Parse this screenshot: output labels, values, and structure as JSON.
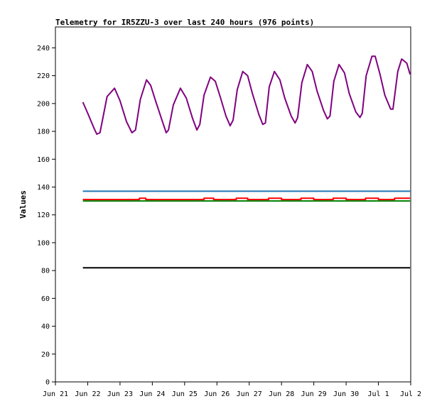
{
  "chart_data": {
    "type": "line",
    "title": "Telemetry for IR5ZZU-3 over last 240 hours (976 points)",
    "xlabel": "",
    "ylabel": "Values",
    "x_tick_labels": [
      "Jun 21",
      "Jun 22",
      "Jun 23",
      "Jun 24",
      "Jun 25",
      "Jun 26",
      "Jun 27",
      "Jun 28",
      "Jun 29",
      "Jun 30",
      "Jul 1",
      "Jul 2"
    ],
    "y_ticks": [
      0,
      20,
      40,
      60,
      80,
      100,
      120,
      140,
      160,
      180,
      200,
      220,
      240
    ],
    "ylim": [
      0,
      255
    ],
    "x_unit": "days since Jun 21 00:00",
    "xlim": [
      0,
      11
    ],
    "grid": false,
    "legend": "none",
    "series": [
      {
        "color": "#800080",
        "points": [
          [
            0.85,
            201
          ],
          [
            1.0,
            193
          ],
          [
            1.2,
            182
          ],
          [
            1.28,
            178
          ],
          [
            1.38,
            179
          ],
          [
            1.6,
            205
          ],
          [
            1.83,
            211
          ],
          [
            2.0,
            202
          ],
          [
            2.2,
            187
          ],
          [
            2.37,
            179
          ],
          [
            2.48,
            181
          ],
          [
            2.63,
            203
          ],
          [
            2.82,
            217
          ],
          [
            2.95,
            213
          ],
          [
            3.1,
            202
          ],
          [
            3.3,
            188
          ],
          [
            3.43,
            179
          ],
          [
            3.5,
            181
          ],
          [
            3.65,
            199
          ],
          [
            3.87,
            211
          ],
          [
            4.05,
            204
          ],
          [
            4.25,
            189
          ],
          [
            4.38,
            181
          ],
          [
            4.47,
            185
          ],
          [
            4.6,
            206
          ],
          [
            4.8,
            219
          ],
          [
            4.95,
            216
          ],
          [
            5.1,
            205
          ],
          [
            5.28,
            191
          ],
          [
            5.41,
            184
          ],
          [
            5.5,
            188
          ],
          [
            5.63,
            210
          ],
          [
            5.8,
            223
          ],
          [
            5.95,
            220
          ],
          [
            6.1,
            207
          ],
          [
            6.3,
            192
          ],
          [
            6.42,
            185
          ],
          [
            6.5,
            186
          ],
          [
            6.62,
            212
          ],
          [
            6.78,
            223
          ],
          [
            6.95,
            217
          ],
          [
            7.1,
            204
          ],
          [
            7.3,
            191
          ],
          [
            7.42,
            186
          ],
          [
            7.5,
            190
          ],
          [
            7.63,
            215
          ],
          [
            7.8,
            228
          ],
          [
            7.95,
            223
          ],
          [
            8.1,
            209
          ],
          [
            8.3,
            195
          ],
          [
            8.42,
            189
          ],
          [
            8.5,
            191
          ],
          [
            8.62,
            216
          ],
          [
            8.78,
            228
          ],
          [
            8.95,
            222
          ],
          [
            9.1,
            207
          ],
          [
            9.3,
            194
          ],
          [
            9.43,
            190
          ],
          [
            9.5,
            193
          ],
          [
            9.62,
            220
          ],
          [
            9.8,
            234
          ],
          [
            9.9,
            234
          ],
          [
            10.05,
            221
          ],
          [
            10.2,
            206
          ],
          [
            10.38,
            196
          ],
          [
            10.45,
            196
          ],
          [
            10.6,
            223
          ],
          [
            10.72,
            232
          ],
          [
            10.88,
            229
          ],
          [
            10.98,
            221
          ]
        ]
      },
      {
        "color": "#1f77b4",
        "points": [
          [
            0.85,
            137
          ],
          [
            10.98,
            137
          ]
        ]
      },
      {
        "color": "#ff0000",
        "points": [
          [
            0.85,
            131
          ],
          [
            2.6,
            131
          ],
          [
            2.6,
            132
          ],
          [
            2.8,
            132
          ],
          [
            2.8,
            131
          ],
          [
            4.6,
            131
          ],
          [
            4.6,
            132
          ],
          [
            4.9,
            132
          ],
          [
            4.9,
            131
          ],
          [
            5.6,
            131
          ],
          [
            5.6,
            132
          ],
          [
            5.95,
            132
          ],
          [
            5.95,
            131
          ],
          [
            6.6,
            131
          ],
          [
            6.6,
            132
          ],
          [
            7.0,
            132
          ],
          [
            7.0,
            131
          ],
          [
            7.6,
            131
          ],
          [
            7.6,
            132
          ],
          [
            8.0,
            132
          ],
          [
            8.0,
            131
          ],
          [
            8.6,
            131
          ],
          [
            8.6,
            132
          ],
          [
            9.0,
            132
          ],
          [
            9.0,
            131
          ],
          [
            9.6,
            131
          ],
          [
            9.6,
            132
          ],
          [
            10.0,
            132
          ],
          [
            10.0,
            131
          ],
          [
            10.5,
            131
          ],
          [
            10.5,
            132
          ],
          [
            10.98,
            132
          ]
        ]
      },
      {
        "color": "#008000",
        "points": [
          [
            0.85,
            130
          ],
          [
            10.98,
            130
          ]
        ]
      },
      {
        "color": "#000000",
        "points": [
          [
            0.85,
            82
          ],
          [
            10.98,
            82
          ]
        ]
      }
    ]
  }
}
